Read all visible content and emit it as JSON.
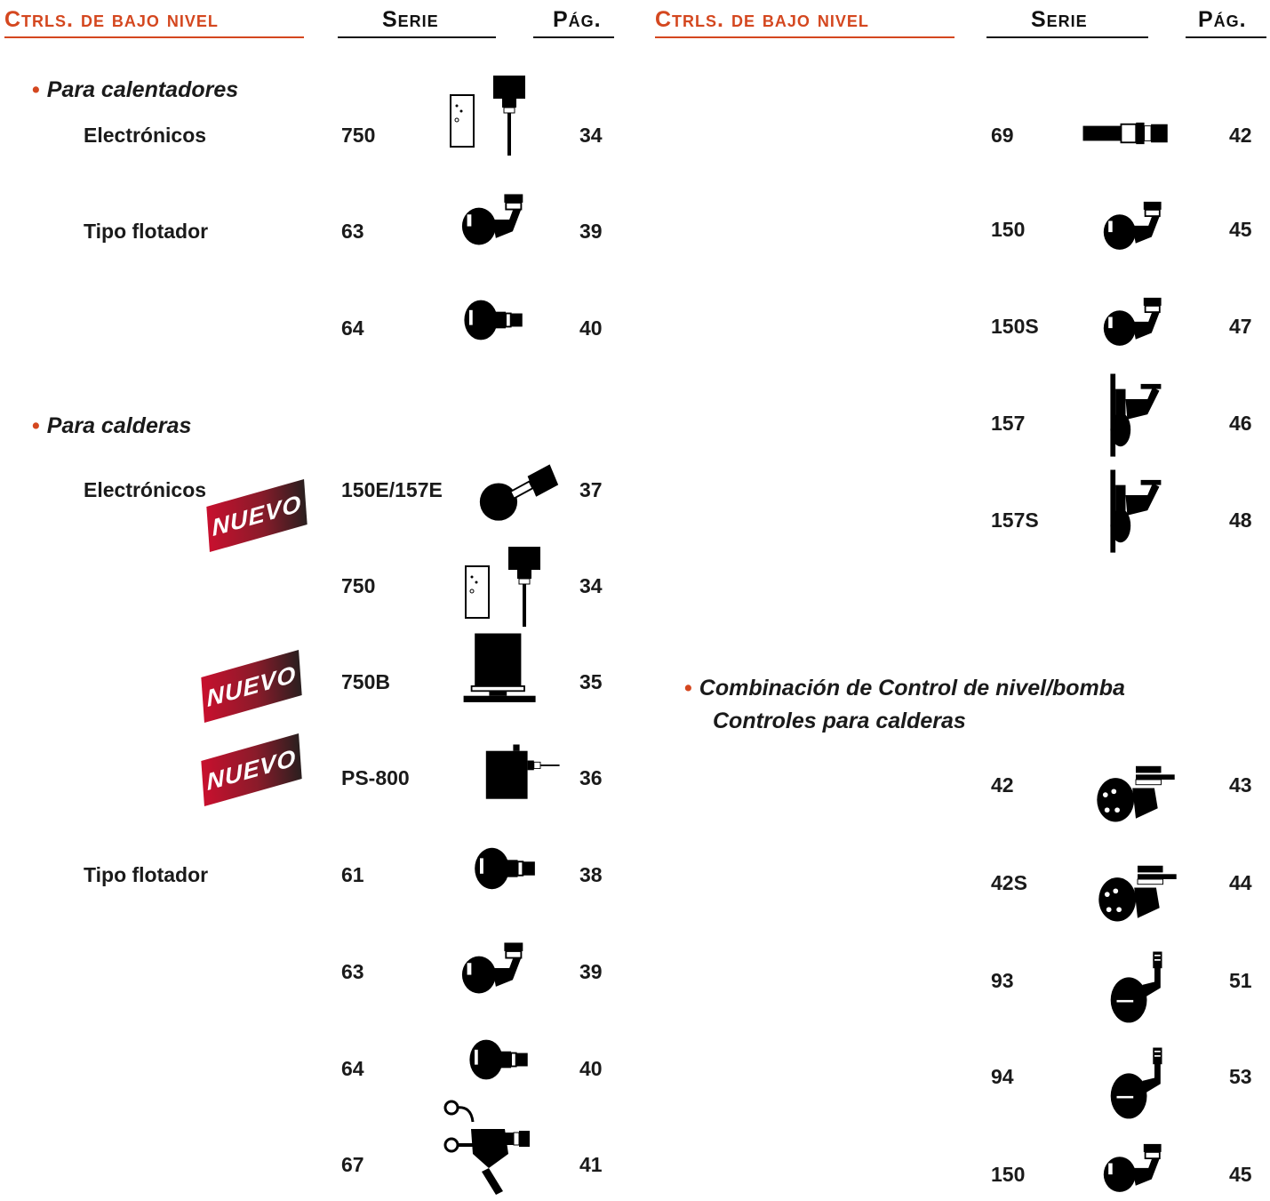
{
  "header_left": {
    "title": "Ctrls. de bajo nivel",
    "col_serie": "Serie",
    "col_pag": "Pág."
  },
  "header_right": {
    "title": "Ctrls. de bajo nivel",
    "col_serie": "Serie",
    "col_pag": "Pág."
  },
  "colors": {
    "accent": "#d4471f",
    "badge_start": "#c8102e",
    "badge_end": "#2a1f1f"
  },
  "badge_label": "NUEVO",
  "left": {
    "section1": {
      "title": "Para calentadores",
      "sub_electronicos": "Electrónicos",
      "sub_flotador": "Tipo flotador",
      "rows": [
        {
          "serie": "750",
          "pag": "34",
          "icon": "probe-control-icon"
        },
        {
          "serie": "63",
          "pag": "39",
          "icon": "float-control-icon"
        },
        {
          "serie": "64",
          "pag": "40",
          "icon": "float-control-icon"
        }
      ]
    },
    "section2": {
      "title": "Para calderas",
      "sub_electronicos": "Electrónicos",
      "sub_flotador": "Tipo flotador",
      "rows": [
        {
          "serie": "150E/157E",
          "pag": "37",
          "icon": "electronic-control-icon",
          "badge": true
        },
        {
          "serie": "750",
          "pag": "34",
          "icon": "probe-control-icon"
        },
        {
          "serie": "750B",
          "pag": "35",
          "icon": "box-control-icon",
          "badge": true
        },
        {
          "serie": "PS-800",
          "pag": "36",
          "icon": "box-control-icon",
          "badge": true
        },
        {
          "serie": "61",
          "pag": "38",
          "icon": "float-control-icon"
        },
        {
          "serie": "63",
          "pag": "39",
          "icon": "float-control-icon"
        },
        {
          "serie": "64",
          "pag": "40",
          "icon": "float-control-icon"
        },
        {
          "serie": "67",
          "pag": "41",
          "icon": "float-control-icon"
        }
      ]
    }
  },
  "right": {
    "rows_top": [
      {
        "serie": "69",
        "pag": "42",
        "icon": "inline-probe-icon"
      },
      {
        "serie": "150",
        "pag": "45",
        "icon": "float-control-icon"
      },
      {
        "serie": "150S",
        "pag": "47",
        "icon": "float-control-icon"
      },
      {
        "serie": "157",
        "pag": "46",
        "icon": "float-control-icon"
      },
      {
        "serie": "157S",
        "pag": "48",
        "icon": "float-control-icon"
      }
    ],
    "section3": {
      "title_line1": "Combinación de Control de nivel/bomba",
      "title_line2": "Controles para calderas",
      "rows": [
        {
          "serie": "42",
          "pag": "43",
          "icon": "float-control-icon"
        },
        {
          "serie": "42S",
          "pag": "44",
          "icon": "float-control-icon"
        },
        {
          "serie": "93",
          "pag": "51",
          "icon": "float-control-icon"
        },
        {
          "serie": "94",
          "pag": "53",
          "icon": "float-control-icon"
        },
        {
          "serie": "150",
          "pag": "45",
          "icon": "float-control-icon"
        }
      ]
    }
  }
}
